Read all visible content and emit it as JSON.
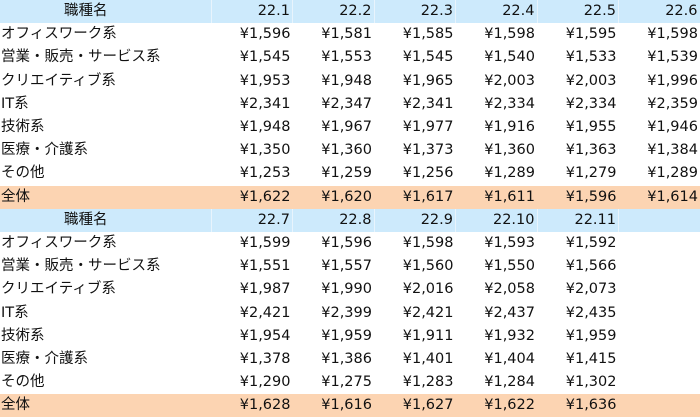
{
  "chart_data": {
    "type": "table",
    "colors": {
      "header_bg": "#cdeafc",
      "total_bg": "#fcd4b2"
    },
    "tables": [
      {
        "header": [
          "職種名",
          "22.1",
          "22.2",
          "22.3",
          "22.4",
          "22.5",
          "22.6"
        ],
        "rows": [
          [
            "オフィスワーク系",
            "¥1,596",
            "¥1,581",
            "¥1,585",
            "¥1,598",
            "¥1,595",
            "¥1,598"
          ],
          [
            "営業・販売・サービス系",
            "¥1,545",
            "¥1,553",
            "¥1,545",
            "¥1,540",
            "¥1,533",
            "¥1,539"
          ],
          [
            "クリエイティブ系",
            "¥1,953",
            "¥1,948",
            "¥1,965",
            "¥2,003",
            "¥2,003",
            "¥1,996"
          ],
          [
            "IT系",
            "¥2,341",
            "¥2,347",
            "¥2,341",
            "¥2,334",
            "¥2,334",
            "¥2,359"
          ],
          [
            "技術系",
            "¥1,948",
            "¥1,967",
            "¥1,977",
            "¥1,916",
            "¥1,955",
            "¥1,946"
          ],
          [
            "医療・介護系",
            "¥1,350",
            "¥1,360",
            "¥1,373",
            "¥1,360",
            "¥1,363",
            "¥1,384"
          ],
          [
            "その他",
            "¥1,253",
            "¥1,259",
            "¥1,256",
            "¥1,289",
            "¥1,279",
            "¥1,289"
          ],
          [
            "全体",
            "¥1,622",
            "¥1,620",
            "¥1,617",
            "¥1,611",
            "¥1,596",
            "¥1,614"
          ]
        ]
      },
      {
        "header": [
          "職種名",
          "22.7",
          "22.8",
          "22.9",
          "22.10",
          "22.11",
          ""
        ],
        "rows": [
          [
            "オフィスワーク系",
            "¥1,599",
            "¥1,596",
            "¥1,598",
            "¥1,593",
            "¥1,592",
            ""
          ],
          [
            "営業・販売・サービス系",
            "¥1,551",
            "¥1,557",
            "¥1,560",
            "¥1,550",
            "¥1,566",
            ""
          ],
          [
            "クリエイティブ系",
            "¥1,987",
            "¥1,990",
            "¥2,016",
            "¥2,058",
            "¥2,073",
            ""
          ],
          [
            "IT系",
            "¥2,421",
            "¥2,399",
            "¥2,421",
            "¥2,437",
            "¥2,435",
            ""
          ],
          [
            "技術系",
            "¥1,954",
            "¥1,959",
            "¥1,911",
            "¥1,932",
            "¥1,959",
            ""
          ],
          [
            "医療・介護系",
            "¥1,378",
            "¥1,386",
            "¥1,401",
            "¥1,404",
            "¥1,415",
            ""
          ],
          [
            "その他",
            "¥1,290",
            "¥1,275",
            "¥1,283",
            "¥1,284",
            "¥1,302",
            ""
          ],
          [
            "全体",
            "¥1,628",
            "¥1,616",
            "¥1,627",
            "¥1,622",
            "¥1,636",
            ""
          ]
        ]
      }
    ]
  }
}
